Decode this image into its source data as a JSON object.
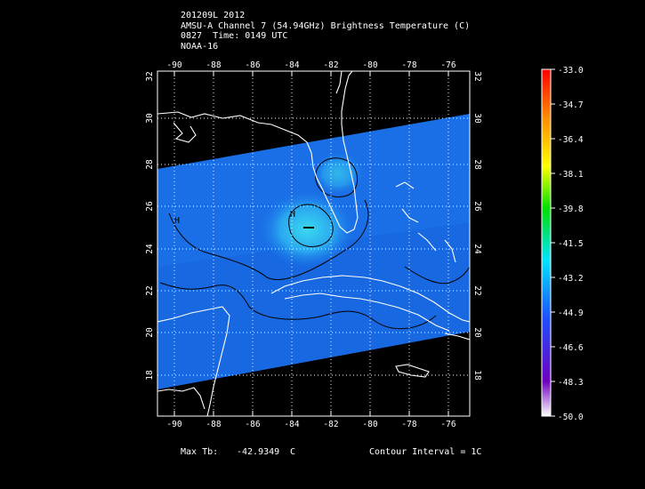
{
  "header": {
    "line1": "201209L 2012",
    "line2": "AMSU-A Channel 7 (54.94GHz) Brightness Temperature (C)",
    "line3": "0827  Time: 0149 UTC",
    "line4": "NOAA-16"
  },
  "map": {
    "lon_ticks": [
      "-90",
      "-88",
      "-86",
      "-84",
      "-82",
      "-80",
      "-78",
      "-76"
    ],
    "lat_ticks": [
      "18",
      "20",
      "22",
      "24",
      "26",
      "28",
      "30",
      "32"
    ],
    "contour_labels": [
      "H",
      "H"
    ],
    "swath_color": "#1a6fe6",
    "warm_core_color": "#2fc6f0",
    "coast_color": "#ffffff"
  },
  "colorbar": {
    "labels": [
      "-33.0",
      "-34.7",
      "-36.4",
      "-38.1",
      "-39.8",
      "-41.5",
      "-43.2",
      "-44.9",
      "-46.6",
      "-48.3",
      "-50.0"
    ],
    "colors_top_to_bottom": [
      "#ff0000",
      "#ff8c00",
      "#ffff00",
      "#00e000",
      "#00e5ff",
      "#1e4dff",
      "#7000c0",
      "#ffffff"
    ]
  },
  "footer": {
    "max_label": "Max Tb:",
    "max_value": "-42.9349",
    "max_unit": "C",
    "contour": "Contour Interval = 1C"
  }
}
